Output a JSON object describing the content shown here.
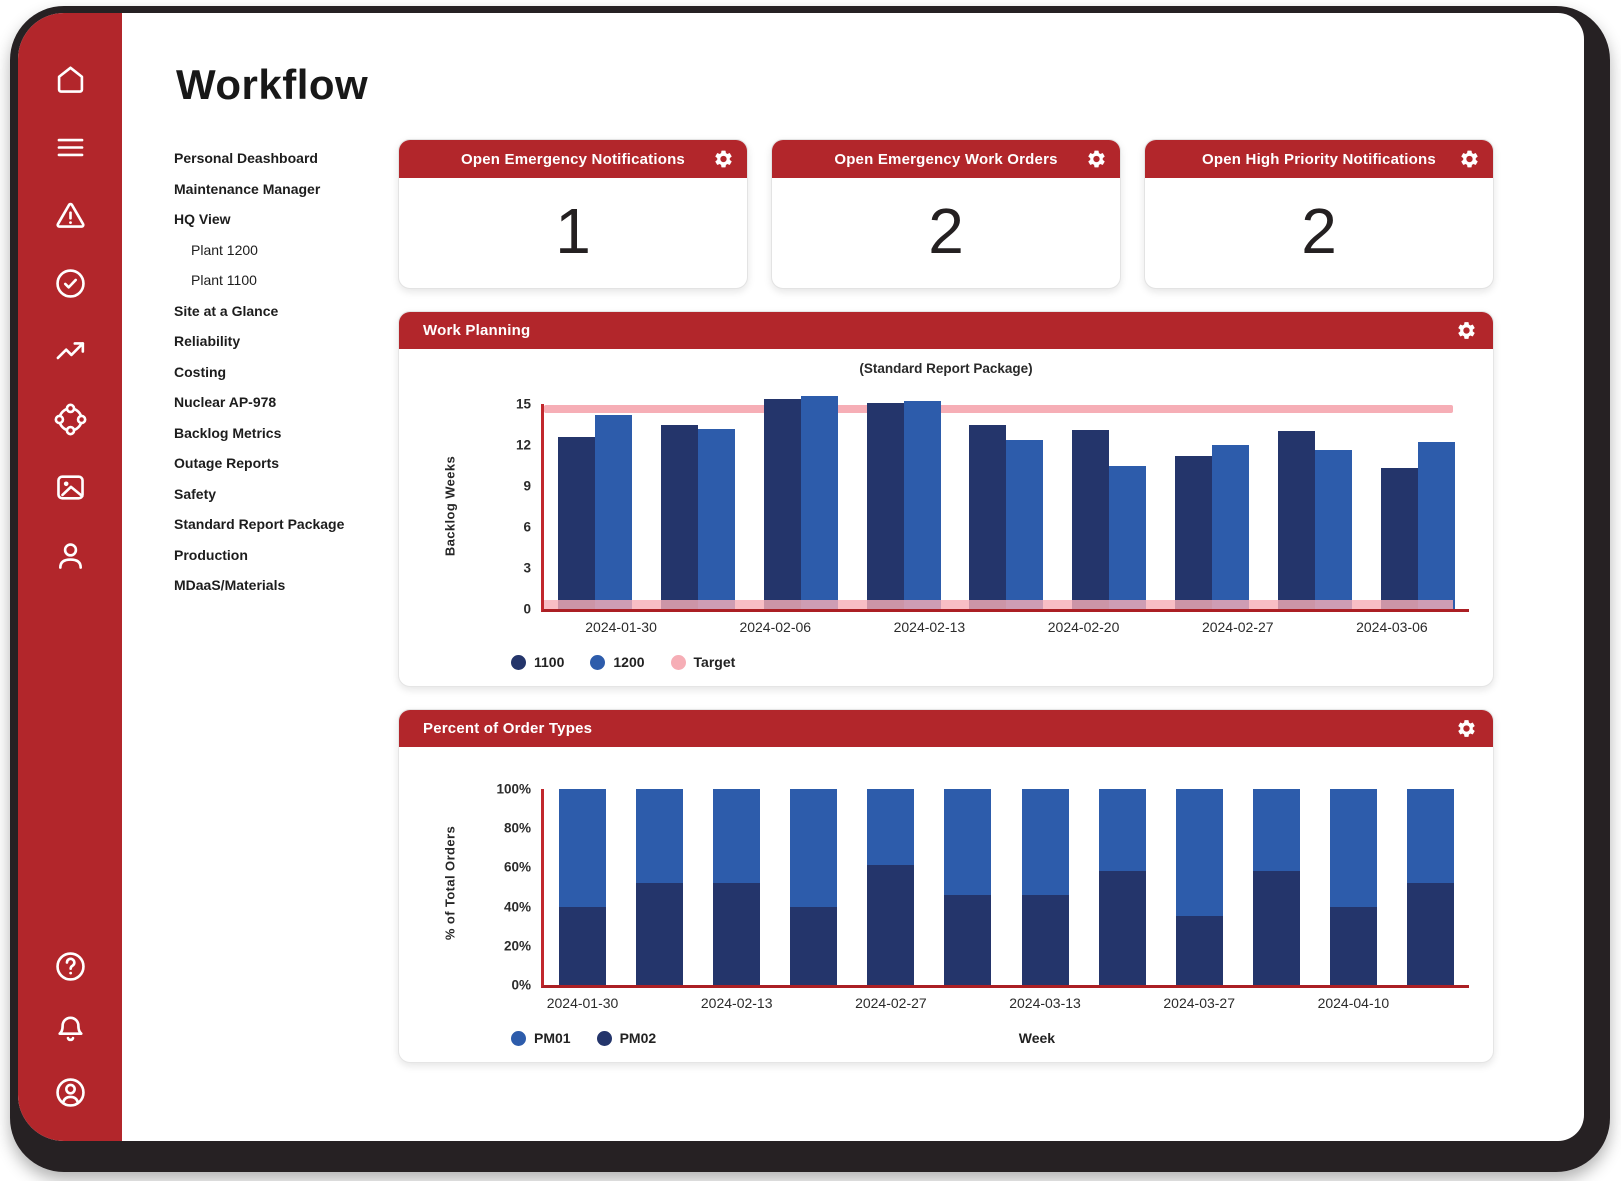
{
  "page_title": "Workflow",
  "colors": {
    "brand_red": "#b2262b",
    "frame_black": "#262123",
    "navy": "#24356b",
    "blue": "#2d5cab",
    "pink": "#f6aeb6",
    "axis_red": "#c1272d"
  },
  "sidebar": {
    "icons_top": [
      "home-icon",
      "menu-icon",
      "alert-triangle-icon",
      "check-circle-icon",
      "trending-up-icon",
      "hub-icon",
      "image-icon",
      "user-icon"
    ],
    "icons_bottom": [
      "help-icon",
      "bell-icon",
      "account-icon"
    ]
  },
  "nav": {
    "items": [
      {
        "label": "Personal Deashboard",
        "indent": false
      },
      {
        "label": "Maintenance Manager",
        "indent": false
      },
      {
        "label": "HQ View",
        "indent": false
      },
      {
        "label": "Plant 1200",
        "indent": true
      },
      {
        "label": "Plant 1100",
        "indent": true
      },
      {
        "label": "Site at a Glance",
        "indent": false
      },
      {
        "label": "Reliability",
        "indent": false
      },
      {
        "label": "Costing",
        "indent": false
      },
      {
        "label": "Nuclear AP-978",
        "indent": false
      },
      {
        "label": "Backlog Metrics",
        "indent": false
      },
      {
        "label": "Outage Reports",
        "indent": false
      },
      {
        "label": "Safety",
        "indent": false
      },
      {
        "label": "Standard Report Package",
        "indent": false
      },
      {
        "label": "Production",
        "indent": false
      },
      {
        "label": "MDaaS/Materials",
        "indent": false
      }
    ]
  },
  "kpis": [
    {
      "title": "Open Emergency Notifications",
      "value": "1",
      "icon": "gear-icon"
    },
    {
      "title": "Open Emergency Work Orders",
      "value": "2",
      "icon": "gear-icon"
    },
    {
      "title": "Open High Priority Notifications",
      "value": "2",
      "icon": "gear-icon"
    }
  ],
  "panels": {
    "work_planning": {
      "title": "Work Planning",
      "icon": "gear-icon"
    },
    "percent_orders": {
      "title": "Percent of Order Types",
      "icon": "gear-icon"
    }
  },
  "chart_data": [
    {
      "type": "bar",
      "title": "(Standard Report Package)",
      "ylabel": "Backlog Weeks",
      "ylim": [
        0,
        15
      ],
      "yticks": [
        0,
        3,
        6,
        9,
        12,
        15
      ],
      "x_tick_labels": [
        "2024-01-30",
        "2024-02-06",
        "2024-02-13",
        "2024-02-20",
        "2024-02-27",
        "2024-03-06"
      ],
      "series": [
        {
          "name": "1100",
          "color": "#24356b",
          "values": [
            12.6,
            13.5,
            15.4,
            15.1,
            13.5,
            13.1,
            11.2,
            13.0,
            10.3
          ]
        },
        {
          "name": "1200",
          "color": "#2d5cab",
          "values": [
            14.2,
            13.2,
            15.6,
            15.2,
            12.4,
            10.5,
            12.0,
            11.6,
            12.2
          ]
        }
      ],
      "target": {
        "name": "Target",
        "color": "#f6aeb6",
        "upper_value": 14.6,
        "lower_value": 0.3
      },
      "legend": [
        "1100",
        "1200",
        "Target"
      ],
      "legend_position": "bottom-left"
    },
    {
      "type": "stacked-bar",
      "title": "",
      "ylabel": "% of Total Orders",
      "xlabel": "Week",
      "ylim": [
        0,
        100
      ],
      "yticks": [
        "0%",
        "20%",
        "40%",
        "60%",
        "80%",
        "100%"
      ],
      "x_tick_labels": [
        "2024-01-30",
        "2024-02-13",
        "2024-02-27",
        "2024-03-13",
        "2024-03-27",
        "2024-04-10"
      ],
      "series": [
        {
          "name": "PM02",
          "color": "#24356b",
          "values": [
            40,
            52,
            52,
            40,
            61,
            46,
            46,
            58,
            35,
            58,
            40,
            52
          ]
        },
        {
          "name": "PM01",
          "color": "#2d5cab",
          "values": [
            60,
            48,
            48,
            60,
            39,
            54,
            54,
            42,
            65,
            42,
            60,
            48
          ]
        }
      ],
      "legend": [
        "PM01",
        "PM02"
      ],
      "legend_position": "bottom-left"
    }
  ]
}
